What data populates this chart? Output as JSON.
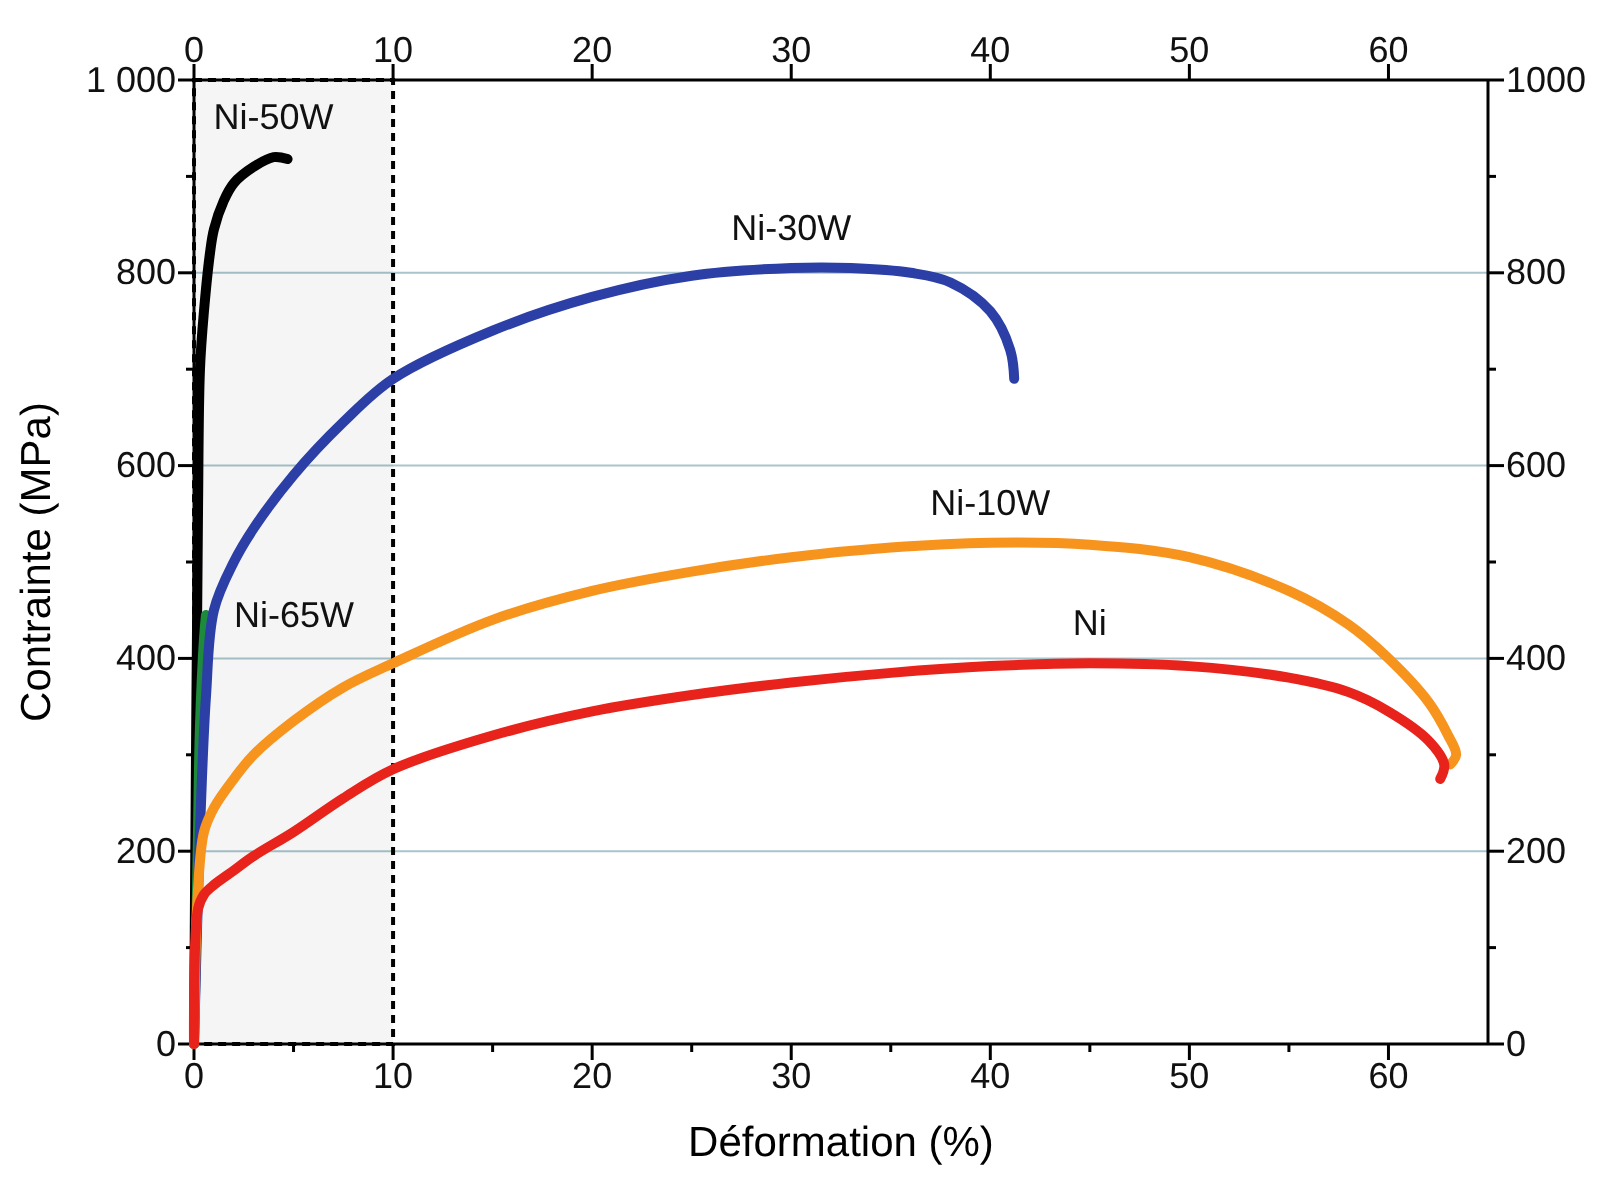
{
  "chart_data": {
    "type": "line",
    "xlabel": "Déformation (%)",
    "ylabel": "Contrainte (MPa)",
    "xlim": [
      0,
      65
    ],
    "xticks": [
      0,
      {
        "value": 5,
        "label": null
      },
      10,
      {
        "value": 15,
        "label": null
      },
      20,
      {
        "value": 25,
        "label": null
      },
      30,
      {
        "value": 35,
        "label": null
      },
      40,
      {
        "value": 45,
        "label": null
      },
      50,
      {
        "value": 55,
        "label": null
      },
      60
    ],
    "x2lim": [
      0,
      65
    ],
    "x2ticks": [
      0,
      10,
      20,
      30,
      40,
      50,
      60
    ],
    "ylim": [
      0,
      1000
    ],
    "yticks": [
      0,
      {
        "value": 100,
        "label": null
      },
      200,
      {
        "value": 300,
        "label": null
      },
      400,
      {
        "value": 500,
        "label": null
      },
      600,
      {
        "value": 700,
        "label": null
      },
      800,
      {
        "value": 900,
        "label": null
      },
      {
        "value": 1000,
        "label": "1 000"
      }
    ],
    "y2lim": [
      0,
      1000
    ],
    "y2ticks": [
      0,
      {
        "value": 100,
        "label": null
      },
      200,
      {
        "value": 300,
        "label": null
      },
      400,
      {
        "value": 500,
        "label": null
      },
      600,
      {
        "value": 700,
        "label": null
      },
      800,
      {
        "value": 900,
        "label": null
      },
      1000
    ],
    "grid": "y",
    "line_style": "solid",
    "marker": "none",
    "bands": [
      {
        "axis": "x",
        "from": 0,
        "to": 10,
        "color": "#000000"
      }
    ],
    "series": [
      {
        "name": "Ni-50W",
        "color": "#000000",
        "x": [
          0,
          0.1,
          0.2,
          0.3,
          0.5,
          0.8,
          1,
          1.5,
          2,
          3,
          4,
          4.7
        ],
        "values": [
          0,
          300,
          550,
          700,
          760,
          820,
          845,
          875,
          893,
          910,
          920,
          918
        ]
      },
      {
        "name": "Ni-65W",
        "color": "#1e8a3c",
        "x": [
          0,
          0.1,
          0.2,
          0.3,
          0.5,
          0.6
        ],
        "values": [
          0,
          100,
          220,
          330,
          420,
          445
        ]
      },
      {
        "name": "Ni-30W",
        "color": "#2b3fa6",
        "x": [
          0,
          0.3,
          0.6,
          1,
          2,
          3,
          5,
          7.5,
          10,
          15,
          20,
          25,
          30,
          33,
          36,
          38,
          40,
          41,
          41.2
        ],
        "values": [
          0,
          220,
          360,
          450,
          500,
          535,
          590,
          645,
          690,
          740,
          775,
          797,
          805,
          805,
          800,
          790,
          760,
          720,
          690
        ]
      },
      {
        "name": "Ni-10W",
        "color": "#f7941d",
        "x": [
          0,
          0.2,
          0.5,
          1,
          2,
          3,
          5,
          7.5,
          10,
          15,
          20,
          25,
          30,
          35,
          40,
          45,
          50,
          55,
          58,
          60,
          62,
          63,
          63.4,
          63.1
        ],
        "values": [
          0,
          160,
          220,
          245,
          275,
          300,
          335,
          370,
          395,
          440,
          470,
          490,
          505,
          515,
          520,
          518,
          505,
          470,
          435,
          400,
          355,
          320,
          300,
          290
        ]
      },
      {
        "name": "Ni",
        "color": "#e8231c",
        "x": [
          0,
          0.2,
          0.5,
          1,
          2,
          3,
          5,
          7.5,
          10,
          15,
          20,
          25,
          30,
          35,
          40,
          45,
          50,
          55,
          58,
          60,
          62,
          62.8,
          62.6
        ],
        "values": [
          0,
          140,
          155,
          165,
          180,
          195,
          220,
          255,
          285,
          320,
          345,
          362,
          375,
          385,
          392,
          395,
          392,
          380,
          365,
          345,
          315,
          290,
          275
        ]
      }
    ]
  }
}
